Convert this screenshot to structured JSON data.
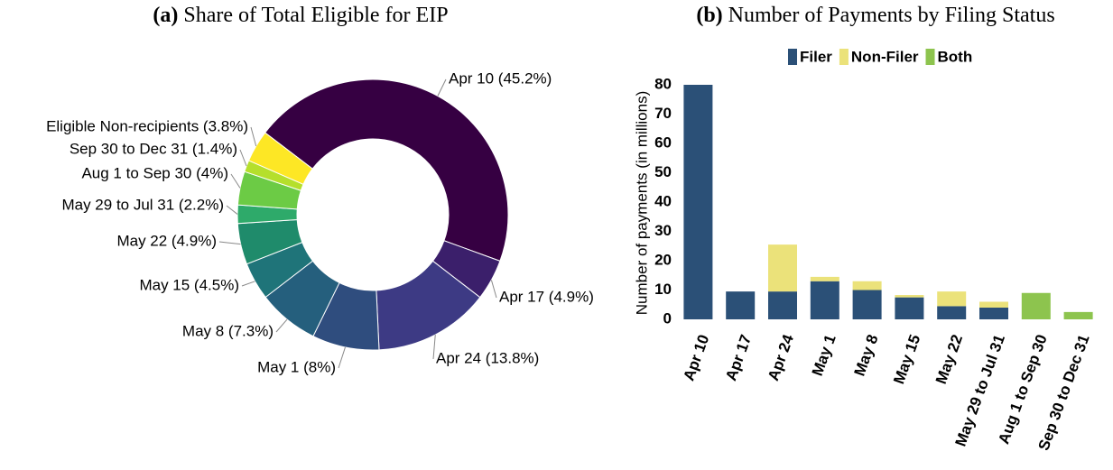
{
  "chart_data": [
    {
      "type": "donut",
      "title_prefix": "(a)",
      "title": "Share of Total Eligible for EIP",
      "categories": [
        "Apr 10 (45.2%)",
        "Apr 17 (4.9%)",
        "Apr 24 (13.8%)",
        "May 1 (8%)",
        "May 8 (7.3%)",
        "May 15 (4.5%)",
        "May 22 (4.9%)",
        "May 29 to Jul 31 (2.2%)",
        "Aug 1 to Sep 30 (4%)",
        "Sep 30 to Dec 31 (1.4%)",
        "Eligible Non-recipients (3.8%)"
      ],
      "values": [
        45.2,
        4.9,
        13.8,
        8,
        7.3,
        4.5,
        4.9,
        2.2,
        4,
        1.4,
        3.8
      ],
      "colors": [
        "#360042",
        "#3b1f6b",
        "#3d3a84",
        "#2f4d7e",
        "#255f7d",
        "#1f7479",
        "#1f8b6b",
        "#2eaa6a",
        "#6ccb45",
        "#b5df2c",
        "#fde725"
      ]
    },
    {
      "type": "stacked_bar",
      "title_prefix": "(b)",
      "title": "Number of Payments by Filing Status",
      "y_label": "Number of payments (in millions)",
      "categories": [
        "Apr 10",
        "Apr 17",
        "Apr 24",
        "May 1",
        "May 8",
        "May 15",
        "May 22",
        "May 29 to Jul 31",
        "Aug 1 to Sep 30",
        "Sep 30 to Dec 31"
      ],
      "series": [
        {
          "name": "Filer",
          "color": "#2b5077",
          "values": [
            80,
            9.5,
            9.5,
            13,
            10,
            7.5,
            4.5,
            4,
            0,
            0
          ]
        },
        {
          "name": "Non-Filer",
          "color": "#ebe27a",
          "values": [
            0,
            0,
            16,
            1.5,
            3,
            0.8,
            5,
            2,
            0,
            0
          ]
        },
        {
          "name": "Both",
          "color": "#8dc44e",
          "values": [
            0,
            0,
            0,
            0,
            0,
            0,
            0,
            0,
            9,
            2.5
          ]
        }
      ],
      "ylim": [
        0,
        80
      ],
      "yticks": [
        0,
        10,
        20,
        30,
        40,
        50,
        60,
        70,
        80
      ],
      "legend": "top"
    }
  ]
}
